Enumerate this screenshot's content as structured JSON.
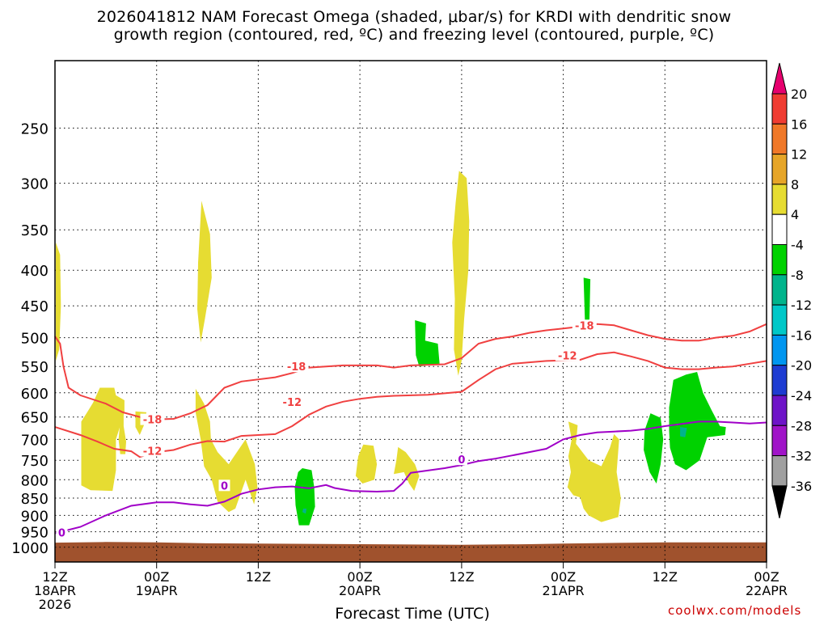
{
  "title_line1": "2026041812 NAM Forecast Omega (shaded, μbar/s) for KRDI with dendritic snow",
  "title_line2": "growth region (contoured, red, ºC) and freezing level (contoured, purple, ºC)",
  "credit": "coolwx.com/models",
  "chart_data": {
    "type": "heatmap",
    "xlabel": "Forecast Time (UTC)",
    "xlim_hours": [
      0,
      84
    ],
    "ylim_mb": [
      1050,
      200
    ],
    "x_ticks": [
      {
        "hour": 0,
        "lines": [
          "12Z",
          "18APR",
          "2026"
        ]
      },
      {
        "hour": 12,
        "lines": [
          "00Z",
          "19APR"
        ]
      },
      {
        "hour": 24,
        "lines": [
          "12Z"
        ]
      },
      {
        "hour": 36,
        "lines": [
          "00Z",
          "20APR"
        ]
      },
      {
        "hour": 48,
        "lines": [
          "12Z"
        ]
      },
      {
        "hour": 60,
        "lines": [
          "00Z",
          "21APR"
        ]
      },
      {
        "hour": 72,
        "lines": [
          "12Z"
        ]
      },
      {
        "hour": 84,
        "lines": [
          "00Z",
          "22APR"
        ]
      }
    ],
    "y_ticks": [
      250,
      300,
      350,
      400,
      450,
      500,
      550,
      600,
      650,
      700,
      750,
      800,
      850,
      900,
      950,
      1000
    ],
    "colorbar": {
      "labels": [
        "20",
        "16",
        "12",
        "8",
        "4",
        "-4",
        "-8",
        "-12",
        "-16",
        "-20",
        "-24",
        "-28",
        "-32",
        "-36"
      ],
      "colors": [
        "#e6006e",
        "#f03c32",
        "#f07828",
        "#e6a528",
        "#e6dc32",
        "#ffffff",
        "#00d200",
        "#00b48c",
        "#00c8c8",
        "#0096f0",
        "#1e3cd2",
        "#6e14c8",
        "#a014c8",
        "#a0a0a0",
        "#000000"
      ]
    },
    "dendritic_contours": [
      {
        "label": "-18",
        "color": "#f04040",
        "points": [
          [
            0,
            498
          ],
          [
            0.6,
            510
          ],
          [
            1,
            550
          ],
          [
            1.6,
            590
          ],
          [
            3,
            605
          ],
          [
            6,
            622
          ],
          [
            8,
            640
          ],
          [
            10,
            650
          ],
          [
            12,
            655
          ],
          [
            14,
            654
          ],
          [
            16,
            642
          ],
          [
            18,
            625
          ],
          [
            20,
            590
          ],
          [
            22,
            578
          ],
          [
            26,
            570
          ],
          [
            28,
            562
          ],
          [
            30,
            552
          ],
          [
            34,
            548
          ],
          [
            38,
            548
          ],
          [
            40,
            552
          ],
          [
            42,
            548
          ],
          [
            46,
            546
          ],
          [
            48,
            535
          ],
          [
            50,
            510
          ],
          [
            52,
            502
          ],
          [
            54,
            498
          ],
          [
            56,
            492
          ],
          [
            58,
            488
          ],
          [
            60,
            485
          ],
          [
            62,
            482
          ],
          [
            64,
            478
          ],
          [
            66,
            480
          ],
          [
            68,
            488
          ],
          [
            70,
            496
          ],
          [
            72,
            502
          ],
          [
            74,
            505
          ],
          [
            76,
            505
          ],
          [
            78,
            500
          ],
          [
            80,
            497
          ],
          [
            82,
            490
          ],
          [
            84,
            478
          ]
        ]
      },
      {
        "label": "-12",
        "color": "#f04040",
        "points": [
          [
            0,
            672
          ],
          [
            3,
            690
          ],
          [
            5,
            705
          ],
          [
            7,
            722
          ],
          [
            9,
            728
          ],
          [
            10,
            742
          ],
          [
            12,
            730
          ],
          [
            14,
            725
          ],
          [
            16,
            712
          ],
          [
            18,
            704
          ],
          [
            20,
            705
          ],
          [
            22,
            692
          ],
          [
            24,
            690
          ],
          [
            26,
            688
          ],
          [
            28,
            670
          ],
          [
            30,
            645
          ],
          [
            32,
            628
          ],
          [
            34,
            618
          ],
          [
            36,
            612
          ],
          [
            38,
            608
          ],
          [
            40,
            606
          ],
          [
            44,
            604
          ],
          [
            48,
            598
          ],
          [
            50,
            575
          ],
          [
            52,
            555
          ],
          [
            54,
            545
          ],
          [
            58,
            540
          ],
          [
            62,
            538
          ],
          [
            64,
            528
          ],
          [
            66,
            525
          ],
          [
            68,
            532
          ],
          [
            70,
            540
          ],
          [
            72,
            552
          ],
          [
            74,
            555
          ],
          [
            76,
            555
          ],
          [
            78,
            552
          ],
          [
            80,
            550
          ],
          [
            82,
            545
          ],
          [
            84,
            540
          ]
        ]
      },
      {
        "label": "0",
        "color": "#a000c8",
        "points": [
          [
            0,
            955
          ],
          [
            3,
            935
          ],
          [
            6,
            900
          ],
          [
            9,
            872
          ],
          [
            12,
            862
          ],
          [
            14,
            862
          ],
          [
            16,
            868
          ],
          [
            18,
            872
          ],
          [
            20,
            860
          ],
          [
            22,
            838
          ],
          [
            24,
            826
          ],
          [
            26,
            820
          ],
          [
            28,
            818
          ],
          [
            30,
            823
          ],
          [
            32,
            814
          ],
          [
            33,
            822
          ],
          [
            35,
            830
          ],
          [
            38,
            832
          ],
          [
            40,
            830
          ],
          [
            41,
            810
          ],
          [
            42,
            782
          ],
          [
            46,
            770
          ],
          [
            48,
            762
          ],
          [
            50,
            752
          ],
          [
            52,
            746
          ],
          [
            54,
            738
          ],
          [
            56,
            730
          ],
          [
            58,
            722
          ],
          [
            60,
            700
          ],
          [
            62,
            690
          ],
          [
            64,
            684
          ],
          [
            66,
            682
          ],
          [
            68,
            680
          ],
          [
            70,
            676
          ],
          [
            72,
            670
          ],
          [
            74,
            665
          ],
          [
            76,
            660
          ],
          [
            78,
            660
          ],
          [
            80,
            662
          ],
          [
            82,
            664
          ],
          [
            84,
            662
          ]
        ]
      }
    ],
    "surface_pressure_mb": [
      [
        0,
        985
      ],
      [
        6,
        983
      ],
      [
        12,
        984
      ],
      [
        18,
        987
      ],
      [
        24,
        988
      ],
      [
        36,
        990
      ],
      [
        48,
        992
      ],
      [
        56,
        990
      ],
      [
        60,
        988
      ],
      [
        72,
        984
      ],
      [
        84,
        984
      ]
    ],
    "surface_color": "#a0522d"
  }
}
